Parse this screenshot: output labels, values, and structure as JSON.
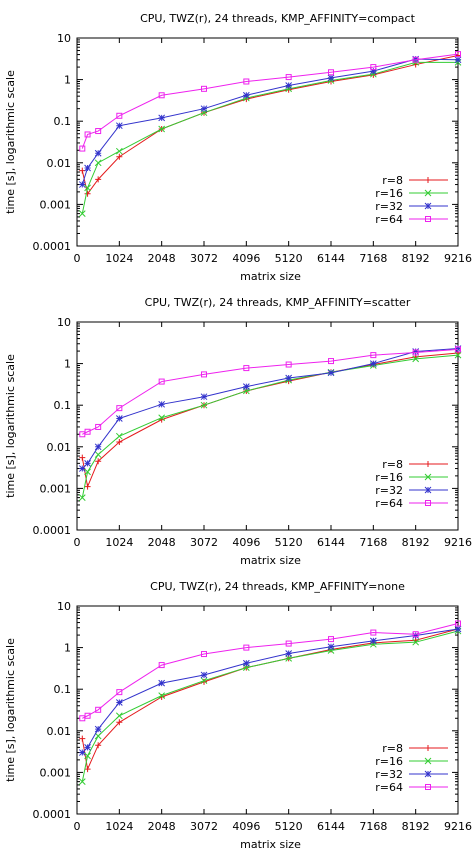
{
  "chart_data": [
    {
      "type": "line",
      "title": "CPU, TWZ(r), 24 threads, KMP_AFFINITY=compact",
      "xlabel": "matrix size",
      "ylabel": "time [s], logarithmic scale",
      "xlim": [
        0,
        9216
      ],
      "ylim": [
        0.0001,
        10
      ],
      "yscale": "log",
      "grid": false,
      "legend_position": "bottom-right",
      "x_ticks": [
        0,
        1024,
        2048,
        3072,
        4096,
        5120,
        6144,
        7168,
        8192,
        9216
      ],
      "y_ticks": [
        0.0001,
        0.001,
        0.01,
        0.1,
        1,
        10
      ],
      "y_tick_labels": [
        "0.0001",
        "0.001",
        "0.01",
        "0.1",
        "1",
        "10"
      ],
      "series": [
        {
          "name": "r=8",
          "color": "#e41a1c",
          "x": [
            128,
            256,
            512,
            1024,
            2048,
            3072,
            4096,
            5120,
            6144,
            7168,
            8192,
            9216
          ],
          "y": [
            0.0065,
            0.0018,
            0.004,
            0.014,
            0.065,
            0.16,
            0.34,
            0.57,
            0.9,
            1.3,
            2.3,
            3.8
          ]
        },
        {
          "name": "r=16",
          "color": "#33cc33",
          "x": [
            128,
            256,
            512,
            1024,
            2048,
            3072,
            4096,
            5120,
            6144,
            7168,
            8192,
            9216
          ],
          "y": [
            0.0006,
            0.0025,
            0.01,
            0.019,
            0.065,
            0.16,
            0.36,
            0.6,
            0.95,
            1.35,
            2.6,
            2.6
          ]
        },
        {
          "name": "r=32",
          "color": "#3333cc",
          "x": [
            128,
            256,
            512,
            1024,
            2048,
            3072,
            4096,
            5120,
            6144,
            7168,
            8192,
            9216
          ],
          "y": [
            0.003,
            0.0075,
            0.017,
            0.078,
            0.12,
            0.2,
            0.42,
            0.72,
            1.1,
            1.6,
            3.1,
            3.0
          ]
        },
        {
          "name": "r=64",
          "color": "#ee22ee",
          "x": [
            128,
            256,
            512,
            1024,
            2048,
            3072,
            4096,
            5120,
            6144,
            7168,
            8192,
            9216
          ],
          "y": [
            0.022,
            0.048,
            0.058,
            0.135,
            0.42,
            0.6,
            0.9,
            1.15,
            1.5,
            2.0,
            3.0,
            4.1
          ]
        }
      ]
    },
    {
      "type": "line",
      "title": "CPU, TWZ(r), 24 threads, KMP_AFFINITY=scatter",
      "xlabel": "matrix size",
      "ylabel": "time [s], logarithmic scale",
      "xlim": [
        0,
        9216
      ],
      "ylim": [
        0.0001,
        10
      ],
      "yscale": "log",
      "grid": false,
      "legend_position": "bottom-right",
      "x_ticks": [
        0,
        1024,
        2048,
        3072,
        4096,
        5120,
        6144,
        7168,
        8192,
        9216
      ],
      "y_ticks": [
        0.0001,
        0.001,
        0.01,
        0.1,
        1,
        10
      ],
      "y_tick_labels": [
        "0.0001",
        "0.001",
        "0.01",
        "0.1",
        "1",
        "10"
      ],
      "series": [
        {
          "name": "r=8",
          "color": "#e41a1c",
          "x": [
            128,
            256,
            512,
            1024,
            2048,
            3072,
            4096,
            5120,
            6144,
            7168,
            8192,
            9216
          ],
          "y": [
            0.0055,
            0.0011,
            0.0045,
            0.013,
            0.045,
            0.1,
            0.22,
            0.38,
            0.62,
            0.95,
            1.45,
            1.8
          ]
        },
        {
          "name": "r=16",
          "color": "#33cc33",
          "x": [
            128,
            256,
            512,
            1024,
            2048,
            3072,
            4096,
            5120,
            6144,
            7168,
            8192,
            9216
          ],
          "y": [
            0.0006,
            0.0025,
            0.0065,
            0.018,
            0.05,
            0.1,
            0.22,
            0.4,
            0.62,
            0.9,
            1.3,
            1.6
          ]
        },
        {
          "name": "r=32",
          "color": "#3333cc",
          "x": [
            128,
            256,
            512,
            1024,
            2048,
            3072,
            4096,
            5120,
            6144,
            7168,
            8192,
            9216
          ],
          "y": [
            0.003,
            0.004,
            0.01,
            0.048,
            0.105,
            0.16,
            0.28,
            0.45,
            0.6,
            1.0,
            1.95,
            2.3
          ]
        },
        {
          "name": "r=64",
          "color": "#ee22ee",
          "x": [
            128,
            256,
            512,
            1024,
            2048,
            3072,
            4096,
            5120,
            6144,
            7168,
            8192,
            9216
          ],
          "y": [
            0.02,
            0.023,
            0.03,
            0.085,
            0.37,
            0.55,
            0.78,
            0.95,
            1.15,
            1.6,
            1.85,
            2.2
          ]
        }
      ]
    },
    {
      "type": "line",
      "title": "CPU, TWZ(r), 24 threads, KMP_AFFINITY=none",
      "xlabel": "matrix size",
      "ylabel": "time [s], logarithmic scale",
      "xlim": [
        0,
        9216
      ],
      "ylim": [
        0.0001,
        10
      ],
      "yscale": "log",
      "grid": false,
      "legend_position": "bottom-right",
      "x_ticks": [
        0,
        1024,
        2048,
        3072,
        4096,
        5120,
        6144,
        7168,
        8192,
        9216
      ],
      "y_ticks": [
        0.0001,
        0.001,
        0.01,
        0.1,
        1,
        10
      ],
      "y_tick_labels": [
        "0.0001",
        "0.001",
        "0.01",
        "0.1",
        "1",
        "10"
      ],
      "series": [
        {
          "name": "r=8",
          "color": "#e41a1c",
          "x": [
            128,
            256,
            512,
            1024,
            2048,
            3072,
            4096,
            5120,
            6144,
            7168,
            8192,
            9216
          ],
          "y": [
            0.0065,
            0.0012,
            0.0045,
            0.016,
            0.065,
            0.15,
            0.33,
            0.55,
            0.9,
            1.3,
            1.5,
            2.8
          ]
        },
        {
          "name": "r=16",
          "color": "#33cc33",
          "x": [
            128,
            256,
            512,
            1024,
            2048,
            3072,
            4096,
            5120,
            6144,
            7168,
            8192,
            9216
          ],
          "y": [
            0.0006,
            0.0025,
            0.0075,
            0.023,
            0.07,
            0.16,
            0.33,
            0.55,
            0.85,
            1.2,
            1.35,
            2.5
          ]
        },
        {
          "name": "r=32",
          "color": "#3333cc",
          "x": [
            128,
            256,
            512,
            1024,
            2048,
            3072,
            4096,
            5120,
            6144,
            7168,
            8192,
            9216
          ],
          "y": [
            0.003,
            0.004,
            0.011,
            0.048,
            0.14,
            0.22,
            0.42,
            0.72,
            1.05,
            1.45,
            1.95,
            2.8
          ]
        },
        {
          "name": "r=64",
          "color": "#ee22ee",
          "x": [
            128,
            256,
            512,
            1024,
            2048,
            3072,
            4096,
            5120,
            6144,
            7168,
            8192,
            9216
          ],
          "y": [
            0.02,
            0.023,
            0.032,
            0.085,
            0.38,
            0.7,
            1.0,
            1.25,
            1.6,
            2.3,
            2.1,
            3.8
          ]
        }
      ]
    }
  ]
}
